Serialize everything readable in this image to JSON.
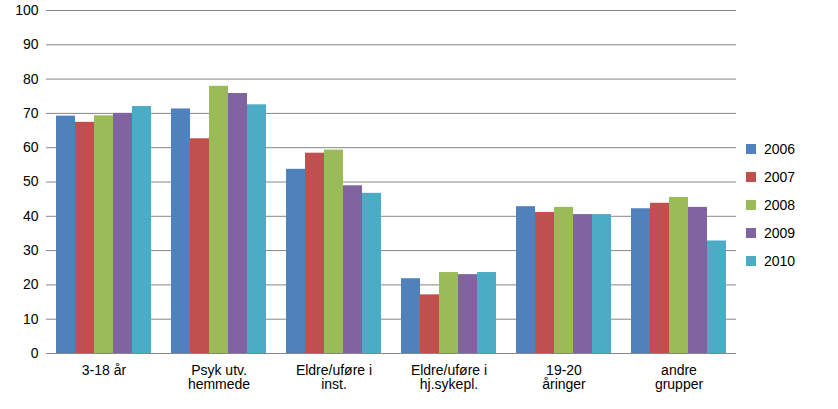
{
  "chart_data": {
    "type": "bar",
    "categories": [
      "3-18 år",
      "Psyk utv.\nhemmede",
      "Eldre/uføre i\ninst.",
      "Eldre/uføre i\nhj.sykepl.",
      "19-20\nåringer",
      "andre\ngrupper"
    ],
    "series": [
      {
        "name": "2006",
        "color": "#4F81BD",
        "values": [
          69.2,
          71.3,
          53.7,
          21.8,
          42.8,
          42.2
        ]
      },
      {
        "name": "2007",
        "color": "#C0504D",
        "values": [
          67.4,
          62.6,
          58.4,
          17.1,
          41.1,
          43.8
        ]
      },
      {
        "name": "2008",
        "color": "#9BBB59",
        "values": [
          69.3,
          77.9,
          59.3,
          23.6,
          42.6,
          45.5
        ]
      },
      {
        "name": "2009",
        "color": "#8064A2",
        "values": [
          70.0,
          75.8,
          48.9,
          23.0,
          40.5,
          42.6
        ]
      },
      {
        "name": "2010",
        "color": "#4BACC6",
        "values": [
          72.0,
          72.5,
          46.7,
          23.6,
          40.5,
          32.8
        ]
      }
    ],
    "ylim": [
      0,
      100
    ],
    "yticks": [
      0,
      10,
      20,
      30,
      40,
      50,
      60,
      70,
      80,
      90,
      100
    ],
    "grid": true,
    "legend": "right"
  }
}
